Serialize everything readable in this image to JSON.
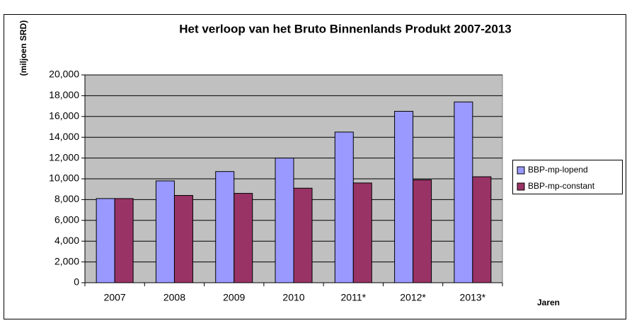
{
  "chart_data": {
    "type": "bar",
    "title": "Het verloop van het Bruto Binnenlands Produkt 2007-2013",
    "y_label": "(miljoen SRD)",
    "x_label": "Jaren",
    "categories": [
      "2007",
      "2008",
      "2009",
      "2010",
      "2011*",
      "2012*",
      "2013*"
    ],
    "series": [
      {
        "name": "BBP-mp-lopend",
        "color": "#9999ff",
        "values": [
          8100,
          9800,
          10700,
          12000,
          14500,
          16500,
          17400
        ]
      },
      {
        "name": "BBP-mp-constant",
        "color": "#993366",
        "values": [
          8100,
          8400,
          8600,
          9100,
          9600,
          9900,
          10200
        ]
      }
    ],
    "ylim": [
      0,
      20000
    ],
    "yticks": [
      0,
      {
        "value": 2000,
        "label": "2,000"
      },
      {
        "value": 4000,
        "label": "4,000"
      },
      {
        "value": 6000,
        "label": "6,000"
      },
      {
        "value": 8000,
        "label": "8,000"
      },
      {
        "value": 10000,
        "label": "10,000"
      },
      {
        "value": 12000,
        "label": "12,000"
      },
      {
        "value": 14000,
        "label": "14,000"
      },
      {
        "value": 16000,
        "label": "16,000"
      },
      {
        "value": 18000,
        "label": "18,000"
      },
      {
        "value": 20000,
        "label": "20,000"
      }
    ],
    "grid": true,
    "legend": "right"
  }
}
